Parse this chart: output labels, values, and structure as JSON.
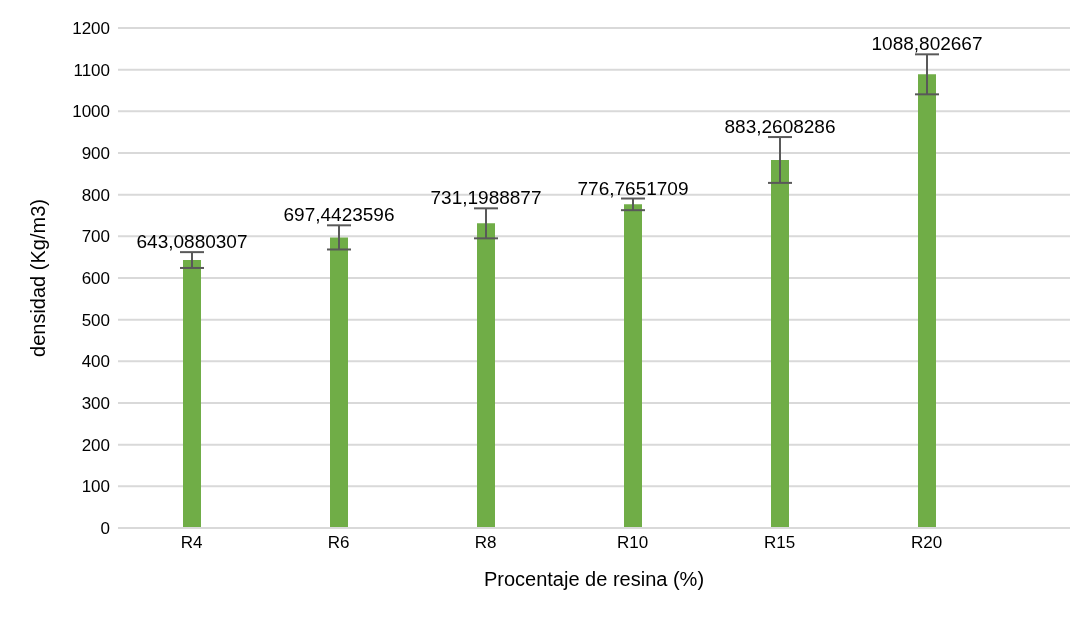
{
  "chart_data": {
    "type": "bar",
    "xlabel": "Procentaje de resina (%)",
    "ylabel": "densidad (Kg/m3)",
    "categories": [
      "R4",
      "R6",
      "R8",
      "R10",
      "R15",
      "R20"
    ],
    "values": [
      643.0880307,
      697.4423596,
      731.1988877,
      776.7651709,
      883.2608286,
      1088.802667
    ],
    "errors": [
      19,
      29,
      36,
      14,
      55,
      48
    ],
    "value_labels": [
      "643,0880307",
      "697,4423596",
      "731,1988877",
      "776,7651709",
      "883,2608286",
      "1088,802667"
    ],
    "color": "#70ad47",
    "ylim": [
      0,
      1200
    ],
    "yticks": [
      0,
      100,
      200,
      300,
      400,
      500,
      600,
      700,
      800,
      900,
      1000,
      1100,
      1200
    ],
    "grid": "y",
    "legend": false
  }
}
